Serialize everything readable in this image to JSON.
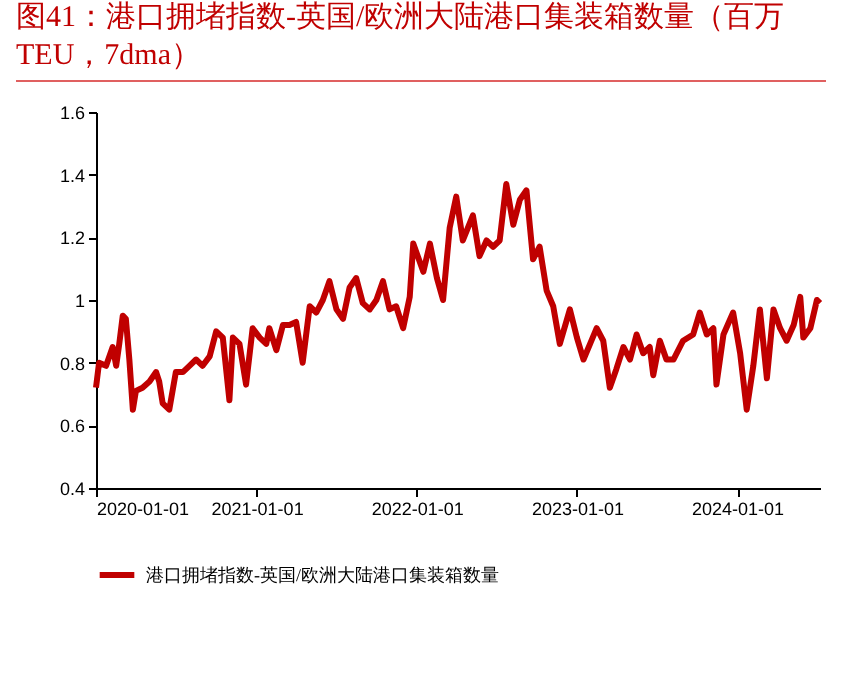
{
  "chart_data": {
    "type": "line",
    "title": "图41：港口拥堵指数-英国/欧洲大陆港口集装箱数量（百万TEU，7dma）",
    "x": [
      "2020-01-01",
      "2020-01-08",
      "2020-01-24",
      "2020-02-08",
      "2020-02-16",
      "2020-02-23",
      "2020-03-02",
      "2020-03-09",
      "2020-03-17",
      "2020-03-25",
      "2020-04-01",
      "2020-04-16",
      "2020-05-02",
      "2020-05-17",
      "2020-05-24",
      "2020-06-01",
      "2020-06-16",
      "2020-07-01",
      "2020-07-17",
      "2020-08-01",
      "2020-08-16",
      "2020-08-31",
      "2020-09-16",
      "2020-10-01",
      "2020-10-16",
      "2020-10-31",
      "2020-11-08",
      "2020-11-23",
      "2020-12-08",
      "2020-12-23",
      "2021-01-08",
      "2021-01-23",
      "2021-01-30",
      "2021-02-15",
      "2021-03-02",
      "2021-03-17",
      "2021-04-01",
      "2021-04-16",
      "2021-05-02",
      "2021-05-17",
      "2021-06-01",
      "2021-06-16",
      "2021-07-02",
      "2021-07-17",
      "2021-08-01",
      "2021-08-16",
      "2021-08-31",
      "2021-09-16",
      "2021-10-01",
      "2021-10-16",
      "2021-10-31",
      "2021-11-15",
      "2021-12-01",
      "2021-12-16",
      "2021-12-24",
      "2022-01-16",
      "2022-01-31",
      "2022-02-16",
      "2022-03-02",
      "2022-03-17",
      "2022-04-01",
      "2022-04-16",
      "2022-05-09",
      "2022-05-24",
      "2022-06-09",
      "2022-06-24",
      "2022-07-09",
      "2022-07-24",
      "2022-08-09",
      "2022-08-24",
      "2022-09-08",
      "2022-09-23",
      "2022-10-08",
      "2022-10-24",
      "2022-11-08",
      "2022-11-23",
      "2022-12-16",
      "2023-01-01",
      "2023-01-16",
      "2023-01-31",
      "2023-02-15",
      "2023-03-02",
      "2023-03-17",
      "2023-04-01",
      "2023-04-17",
      "2023-05-02",
      "2023-05-17",
      "2023-06-01",
      "2023-06-16",
      "2023-06-24",
      "2023-07-09",
      "2023-07-24",
      "2023-08-09",
      "2023-08-31",
      "2023-09-23",
      "2023-10-08",
      "2023-10-24",
      "2023-11-08",
      "2023-11-15",
      "2023-12-01",
      "2023-12-23",
      "2024-01-08",
      "2024-01-23",
      "2024-02-07",
      "2024-02-22",
      "2024-03-09",
      "2024-03-24",
      "2024-04-08",
      "2024-04-23",
      "2024-05-09",
      "2024-05-24",
      "2024-05-31",
      "2024-06-16",
      "2024-07-01",
      "2024-07-08"
    ],
    "series": [
      {
        "name": "港口拥堵指数-英国/欧洲大陆港口集装箱数量",
        "color": "#c00000",
        "values": [
          0.72,
          0.8,
          0.79,
          0.85,
          0.79,
          0.86,
          0.95,
          0.94,
          0.81,
          0.65,
          0.71,
          0.72,
          0.74,
          0.77,
          0.74,
          0.67,
          0.65,
          0.77,
          0.77,
          0.79,
          0.81,
          0.79,
          0.82,
          0.9,
          0.88,
          0.68,
          0.88,
          0.86,
          0.73,
          0.91,
          0.88,
          0.86,
          0.91,
          0.84,
          0.92,
          0.92,
          0.93,
          0.8,
          0.98,
          0.96,
          1.0,
          1.06,
          0.97,
          0.94,
          1.04,
          1.07,
          0.99,
          0.97,
          1.0,
          1.06,
          0.97,
          0.98,
          0.91,
          1.01,
          1.18,
          1.09,
          1.18,
          1.07,
          1.0,
          1.23,
          1.33,
          1.19,
          1.27,
          1.14,
          1.19,
          1.17,
          1.19,
          1.37,
          1.24,
          1.32,
          1.35,
          1.13,
          1.17,
          1.03,
          0.98,
          0.86,
          0.97,
          0.88,
          0.81,
          0.86,
          0.91,
          0.87,
          0.72,
          0.78,
          0.85,
          0.81,
          0.89,
          0.83,
          0.85,
          0.76,
          0.87,
          0.81,
          0.81,
          0.87,
          0.89,
          0.96,
          0.89,
          0.91,
          0.73,
          0.89,
          0.96,
          0.83,
          0.65,
          0.79,
          0.97,
          0.75,
          0.97,
          0.91,
          0.87,
          0.92,
          1.01,
          0.88,
          0.91,
          1.0,
          0.99
        ]
      }
    ],
    "xlim": [
      "2020-01-01",
      "2024-07-08"
    ],
    "xticks": [
      "2020-01-01",
      "2021-01-01",
      "2022-01-01",
      "2023-01-01",
      "2024-01-01"
    ],
    "ylim": [
      0.4,
      1.6
    ],
    "yticks": [
      0.4,
      0.6,
      0.8,
      1,
      1.2,
      1.4,
      1.6
    ],
    "grid": false,
    "legend": "bottom",
    "marker": "none",
    "line_style": "solid"
  }
}
